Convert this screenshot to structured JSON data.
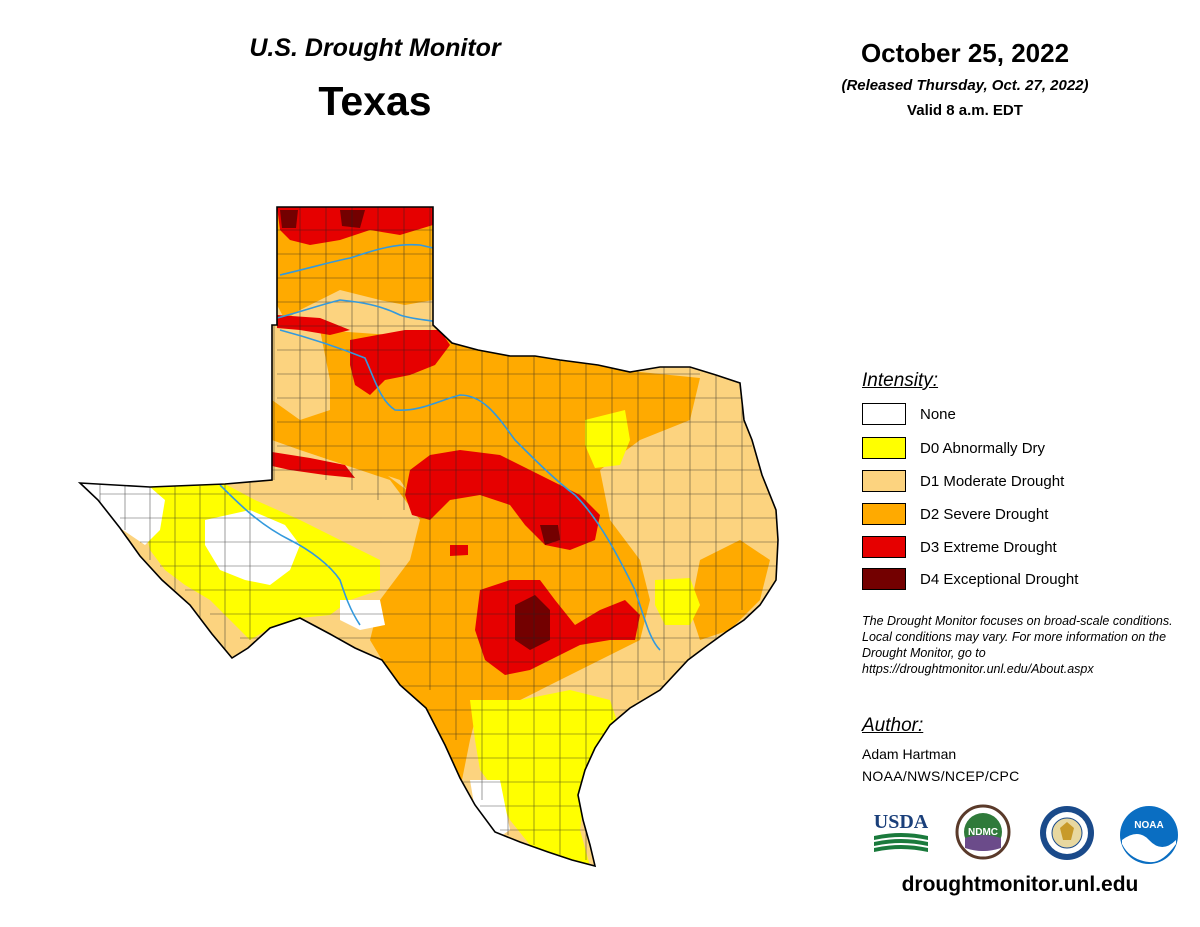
{
  "header": {
    "subtitle": "U.S. Drought Monitor",
    "title": "Texas",
    "date": "October 25, 2022",
    "released": "(Released Thursday, Oct. 27, 2022)",
    "valid": "Valid 8 a.m. EDT"
  },
  "legend": {
    "title": "Intensity:",
    "items": [
      {
        "label": "None",
        "color": "#ffffff"
      },
      {
        "label": "D0 Abnormally Dry",
        "color": "#ffff00"
      },
      {
        "label": "D1 Moderate Drought",
        "color": "#fcd37f"
      },
      {
        "label": "D2 Severe Drought",
        "color": "#ffaa00"
      },
      {
        "label": "D3 Extreme Drought",
        "color": "#e60000"
      },
      {
        "label": "D4 Exceptional Drought",
        "color": "#730000"
      }
    ]
  },
  "note": "The Drought Monitor focuses on broad-scale conditions. Local conditions may vary. For more information on the Drought Monitor, go to https://droughtmonitor.unl.edu/About.aspx",
  "author": {
    "title": "Author:",
    "name": "Adam Hartman",
    "org": "NOAA/NWS/NCEP/CPC"
  },
  "logos": {
    "usda": "USDA",
    "ndmc": "NDMC",
    "noaa": "NOAA"
  },
  "website": "droughtmonitor.unl.edu",
  "map": {
    "state": "Texas",
    "rivers_color": "#3399dd"
  }
}
